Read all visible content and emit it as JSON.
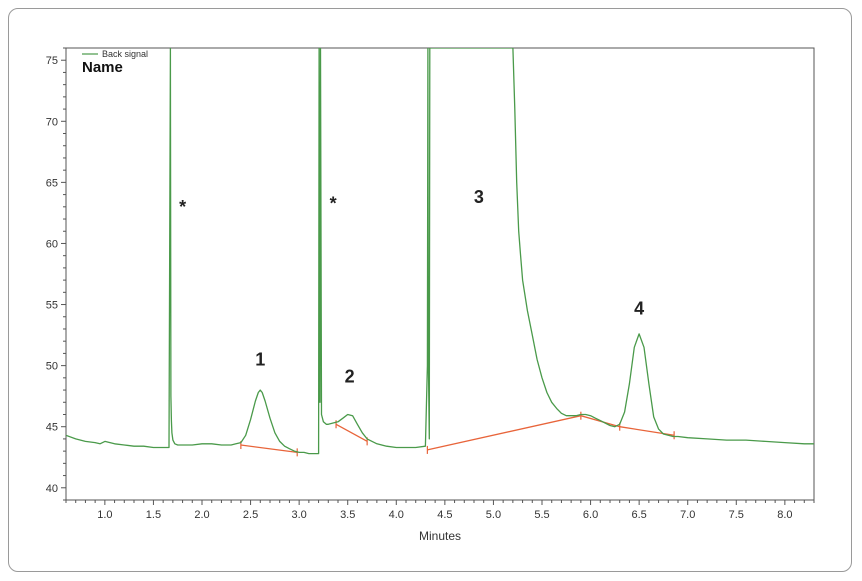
{
  "chart_data": {
    "type": "line",
    "title": "",
    "xlabel": "Minutes",
    "ylabel": "",
    "xlim": [
      0.6,
      8.3
    ],
    "ylim": [
      39,
      76
    ],
    "x_ticks": [
      1.0,
      1.5,
      2.0,
      2.5,
      3.0,
      3.5,
      4.0,
      4.5,
      5.0,
      5.5,
      6.0,
      6.5,
      7.0,
      7.5,
      8.0
    ],
    "y_ticks": [
      40,
      45,
      50,
      55,
      60,
      65,
      70,
      75
    ],
    "legend": {
      "label": "Back signal",
      "header": "Name",
      "placement": "top-left"
    },
    "colors": {
      "signal": "#4a9a4a",
      "baseline": "#e8643a"
    },
    "series": [
      {
        "name": "Back signal",
        "x": [
          0.6,
          0.7,
          0.8,
          0.9,
          0.95,
          1.0,
          1.1,
          1.2,
          1.3,
          1.4,
          1.5,
          1.6,
          1.66,
          1.675,
          1.68,
          1.685,
          1.69,
          1.7,
          1.72,
          1.75,
          1.8,
          1.9,
          2.0,
          2.1,
          2.2,
          2.3,
          2.35,
          2.4,
          2.45,
          2.5,
          2.55,
          2.58,
          2.6,
          2.62,
          2.65,
          2.7,
          2.75,
          2.8,
          2.85,
          2.9,
          2.95,
          3.0,
          3.05,
          3.1,
          3.15,
          3.2,
          3.205,
          3.21,
          3.215,
          3.22,
          3.23,
          3.25,
          3.28,
          3.3,
          3.35,
          3.4,
          3.45,
          3.5,
          3.55,
          3.6,
          3.65,
          3.7,
          3.8,
          3.9,
          4.0,
          4.1,
          4.2,
          4.3,
          4.32,
          4.325,
          4.33,
          4.34,
          4.345,
          5.2,
          5.22,
          5.24,
          5.26,
          5.28,
          5.3,
          5.35,
          5.4,
          5.45,
          5.5,
          5.55,
          5.6,
          5.65,
          5.7,
          5.75,
          5.8,
          5.85,
          5.9,
          5.95,
          6.0,
          6.05,
          6.1,
          6.15,
          6.2,
          6.25,
          6.3,
          6.35,
          6.4,
          6.45,
          6.5,
          6.55,
          6.6,
          6.65,
          6.7,
          6.75,
          6.8,
          6.85,
          6.9,
          7.0,
          7.2,
          7.4,
          7.6,
          7.8,
          8.0,
          8.2,
          8.3
        ],
        "values": [
          44.3,
          44.0,
          43.8,
          43.7,
          43.6,
          43.8,
          43.6,
          43.5,
          43.4,
          43.4,
          43.3,
          43.3,
          43.3,
          76,
          47.5,
          45.5,
          44.5,
          43.9,
          43.6,
          43.5,
          43.5,
          43.5,
          43.6,
          43.6,
          43.5,
          43.5,
          43.6,
          43.7,
          44.3,
          45.6,
          47.1,
          47.8,
          48.0,
          47.8,
          47.1,
          45.7,
          44.5,
          43.8,
          43.4,
          43.2,
          43.0,
          42.9,
          42.9,
          42.8,
          42.8,
          42.8,
          76,
          48.5,
          47,
          76,
          46.0,
          45.4,
          45.2,
          45.2,
          45.3,
          45.4,
          45.7,
          46.0,
          45.9,
          45.2,
          44.5,
          44.0,
          43.6,
          43.4,
          43.3,
          43.3,
          43.3,
          43.4,
          50,
          76,
          51,
          44,
          76,
          76,
          71,
          65,
          61,
          59,
          57,
          54.5,
          52.5,
          50.5,
          49.0,
          47.8,
          47.0,
          46.5,
          46.1,
          45.9,
          45.9,
          45.9,
          46.0,
          46.0,
          45.9,
          45.7,
          45.5,
          45.3,
          45.1,
          45.0,
          45.2,
          46.2,
          48.5,
          51.5,
          52.6,
          51.5,
          48.5,
          45.8,
          44.8,
          44.4,
          44.3,
          44.2,
          44.2,
          44.1,
          44.0,
          43.9,
          43.9,
          43.8,
          43.7,
          43.6,
          43.6
        ]
      }
    ],
    "baselines": [
      {
        "x": [
          2.4,
          2.98
        ],
        "values": [
          43.5,
          42.9
        ]
      },
      {
        "x": [
          3.38,
          3.7
        ],
        "values": [
          45.2,
          43.8
        ]
      },
      {
        "x": [
          4.32,
          5.9,
          6.3,
          6.86
        ],
        "values": [
          43.1,
          45.9,
          45.0,
          44.3
        ]
      }
    ],
    "peak_labels": [
      {
        "label": "*",
        "x": 1.8,
        "y": 62.5
      },
      {
        "label": "*",
        "x": 3.35,
        "y": 62.8
      },
      {
        "label": "1",
        "x": 2.6,
        "y": 50.0
      },
      {
        "label": "2",
        "x": 3.52,
        "y": 48.6
      },
      {
        "label": "3",
        "x": 4.85,
        "y": 63.3
      },
      {
        "label": "4",
        "x": 6.5,
        "y": 54.2
      }
    ],
    "grid": false
  }
}
